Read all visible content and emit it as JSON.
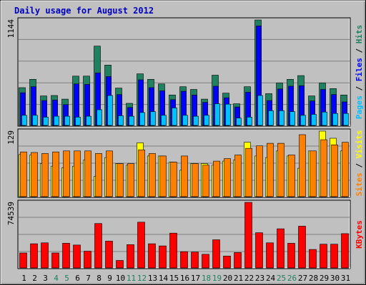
{
  "title": "Daily usage for August 2012",
  "colors": {
    "background": "#c0c0c0",
    "plot_bg": "#c0c0c0",
    "title": "#0000c0",
    "hits": "#208060",
    "files": "#0000ff",
    "pages": "#00c0ff",
    "visits": "#ffff00",
    "sites": "#ff8000",
    "kbytes": "#ff0000",
    "weekend": "#208060",
    "weekday": "#000000",
    "grid": "#808080"
  },
  "chart_data": [
    {
      "type": "bar",
      "panel": "hits-files-pages",
      "ymax_label": "1144",
      "ylim": [
        0,
        1144
      ],
      "legend": [
        {
          "label": "Pages",
          "color": "#00c0ff"
        },
        {
          "label": "Files",
          "color": "#0000ff"
        },
        {
          "label": "Hits",
          "color": "#208060"
        }
      ],
      "categories": [
        "1",
        "2",
        "3",
        "4",
        "5",
        "6",
        "7",
        "8",
        "9",
        "10",
        "11",
        "12",
        "13",
        "14",
        "15",
        "16",
        "17",
        "18",
        "19",
        "20",
        "21",
        "22",
        "23",
        "24",
        "25",
        "26",
        "27",
        "28",
        "29",
        "30",
        "31"
      ],
      "series": [
        {
          "name": "Hits",
          "values": [
            410,
            500,
            320,
            325,
            285,
            535,
            535,
            860,
            655,
            405,
            240,
            560,
            500,
            450,
            330,
            420,
            390,
            285,
            545,
            350,
            235,
            420,
            1144,
            345,
            460,
            500,
            540,
            320,
            460,
            400,
            330
          ]
        },
        {
          "name": "Files",
          "values": [
            355,
            420,
            270,
            275,
            225,
            450,
            445,
            570,
            530,
            335,
            195,
            495,
            410,
            375,
            280,
            370,
            330,
            250,
            425,
            300,
            200,
            360,
            1080,
            270,
            395,
            425,
            430,
            265,
            390,
            335,
            255
          ]
        },
        {
          "name": "Pages",
          "values": [
            110,
            110,
            90,
            100,
            100,
            90,
            100,
            170,
            325,
            105,
            100,
            140,
            150,
            110,
            190,
            110,
            100,
            110,
            235,
            230,
            80,
            90,
            325,
            160,
            160,
            150,
            110,
            120,
            145,
            130,
            130
          ]
        }
      ]
    },
    {
      "type": "bar",
      "panel": "visits-sites",
      "ymax_label": "129",
      "ylim": [
        0,
        129
      ],
      "legend": [
        {
          "label": "Sites",
          "color": "#ff8000"
        },
        {
          "label": "Visits",
          "color": "#ffff00"
        }
      ],
      "categories": [
        "1",
        "2",
        "3",
        "4",
        "5",
        "6",
        "7",
        "8",
        "9",
        "10",
        "11",
        "12",
        "13",
        "14",
        "15",
        "16",
        "17",
        "18",
        "19",
        "20",
        "21",
        "22",
        "23",
        "24",
        "25",
        "26",
        "27",
        "28",
        "29",
        "30",
        "31"
      ],
      "series": [
        {
          "name": "Visits",
          "values": [
            83,
            82,
            65,
            60,
            57,
            60,
            72,
            40,
            77,
            65,
            62,
            106,
            80,
            80,
            68,
            52,
            65,
            65,
            62,
            70,
            72,
            107,
            80,
            77,
            90,
            80,
            56,
            90,
            129,
            115,
            90
          ]
        },
        {
          "name": "Sites",
          "values": [
            88,
            87,
            85,
            88,
            90,
            90,
            90,
            85,
            90,
            65,
            65,
            92,
            85,
            80,
            68,
            80,
            65,
            62,
            70,
            75,
            82,
            95,
            100,
            105,
            105,
            82,
            122,
            90,
            112,
            102,
            107
          ]
        }
      ]
    },
    {
      "type": "bar",
      "panel": "kbytes",
      "ymax_label": "74539",
      "ylim": [
        0,
        74539
      ],
      "legend": [
        {
          "label": "KBytes",
          "color": "#ff0000"
        }
      ],
      "categories": [
        "1",
        "2",
        "3",
        "4",
        "5",
        "6",
        "7",
        "8",
        "9",
        "10",
        "11",
        "12",
        "13",
        "14",
        "15",
        "16",
        "17",
        "18",
        "19",
        "20",
        "21",
        "22",
        "23",
        "24",
        "25",
        "26",
        "27",
        "28",
        "29",
        "30",
        "31"
      ],
      "series": [
        {
          "name": "KBytes",
          "values": [
            17000,
            27500,
            28500,
            17000,
            28000,
            26000,
            19000,
            50500,
            30500,
            8500,
            26500,
            52000,
            27500,
            25000,
            39500,
            18500,
            18000,
            15500,
            32000,
            13500,
            17500,
            74539,
            40000,
            28500,
            44500,
            28000,
            47500,
            21000,
            27000,
            27000,
            39000
          ]
        }
      ]
    }
  ],
  "x_labels": [
    {
      "t": "1",
      "w": false
    },
    {
      "t": "2",
      "w": false
    },
    {
      "t": "3",
      "w": false
    },
    {
      "t": "4",
      "w": true
    },
    {
      "t": "5",
      "w": true
    },
    {
      "t": "6",
      "w": false
    },
    {
      "t": "7",
      "w": false
    },
    {
      "t": "8",
      "w": false
    },
    {
      "t": "9",
      "w": false
    },
    {
      "t": "10",
      "w": false
    },
    {
      "t": "11",
      "w": true
    },
    {
      "t": "12",
      "w": true
    },
    {
      "t": "13",
      "w": false
    },
    {
      "t": "14",
      "w": false
    },
    {
      "t": "15",
      "w": false
    },
    {
      "t": "16",
      "w": false
    },
    {
      "t": "17",
      "w": false
    },
    {
      "t": "18",
      "w": true
    },
    {
      "t": "19",
      "w": true
    },
    {
      "t": "20",
      "w": false
    },
    {
      "t": "21",
      "w": false
    },
    {
      "t": "22",
      "w": false
    },
    {
      "t": "23",
      "w": false
    },
    {
      "t": "24",
      "w": false
    },
    {
      "t": "25",
      "w": true
    },
    {
      "t": "26",
      "w": true
    },
    {
      "t": "27",
      "w": false
    },
    {
      "t": "28",
      "w": false
    },
    {
      "t": "29",
      "w": false
    },
    {
      "t": "30",
      "w": false
    },
    {
      "t": "31",
      "w": false
    }
  ]
}
